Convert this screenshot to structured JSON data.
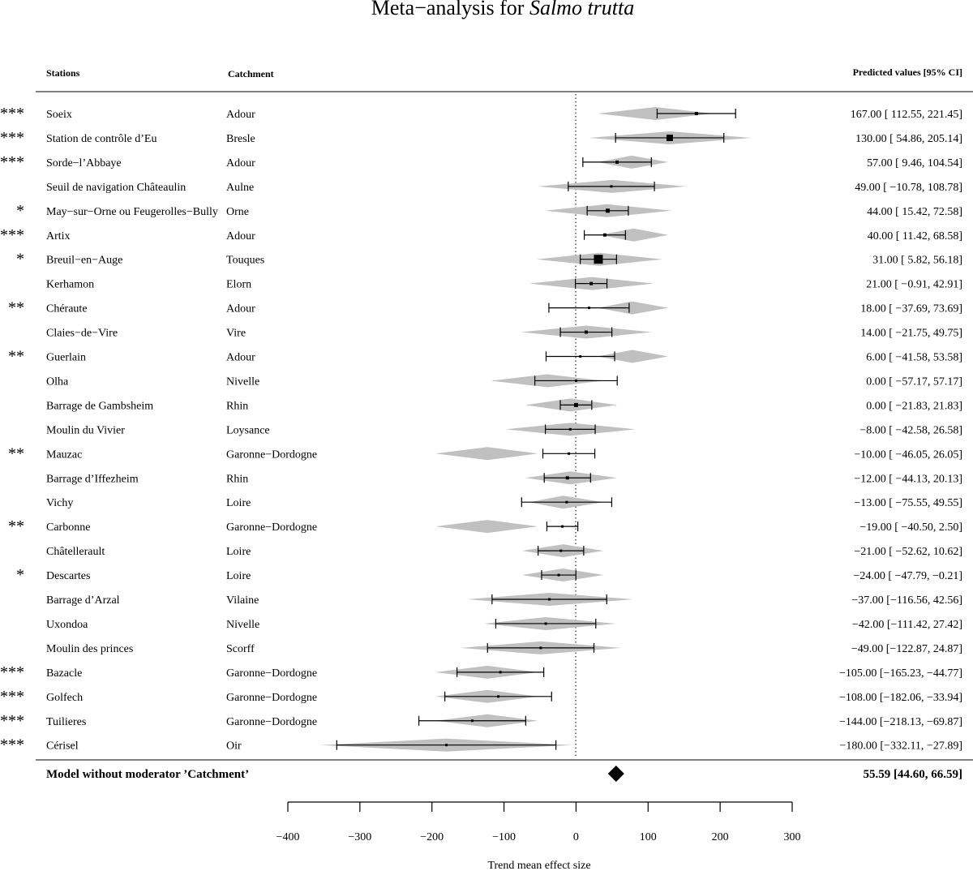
{
  "title_main": "Meta−analysis for ",
  "title_species": "Salmo trutta",
  "headers": {
    "stations": "Stations",
    "catchment": "Catchment",
    "predicted": "Predicted values [95% CI]"
  },
  "chart_data": {
    "type": "forest",
    "xlabel": "Trend mean effect size",
    "xlim": [
      -400,
      300
    ],
    "xticks": [
      -400,
      -300,
      -200,
      -100,
      0,
      100,
      200,
      300
    ],
    "xtick_labels": [
      "−400",
      "−300",
      "−200",
      "−100",
      "0",
      "100",
      "200",
      "300"
    ],
    "reference_line": 0,
    "rows": [
      {
        "sig": "***",
        "station": "Soeix",
        "catchment": "Adour",
        "est": 167.0,
        "lo": 112.55,
        "hi": 221.45,
        "label": "167.00 [ 112.55, 221.45]",
        "pred_center": 110,
        "pred_lo": 30,
        "pred_hi": 190,
        "box": 4
      },
      {
        "sig": "***",
        "station": "Station de contrôle d’Eu",
        "catchment": "Bresle",
        "est": 130.0,
        "lo": 54.86,
        "hi": 205.14,
        "label": "130.00 [ 54.86, 205.14]",
        "pred_center": 130,
        "pred_lo": 18,
        "pred_hi": 243,
        "box": 8
      },
      {
        "sig": "***",
        "station": "Sorde−l’Abbaye",
        "catchment": "Adour",
        "est": 57.0,
        "lo": 9.46,
        "hi": 104.54,
        "label": "57.00 [  9.46, 104.54]",
        "pred_center": 77,
        "pred_lo": 30,
        "pred_hi": 128,
        "box": 4
      },
      {
        "sig": "",
        "station": "Seuil de navigation Châteaulin",
        "catchment": "Aulne",
        "est": 49.0,
        "lo": -10.78,
        "hi": 108.78,
        "label": "49.00 [ −10.78, 108.78]",
        "pred_center": 50,
        "pred_lo": -53,
        "pred_hi": 153,
        "box": 3
      },
      {
        "sig": "*",
        "station": "May−sur−Orne ou Feugerolles−Bully",
        "catchment": "Orne",
        "est": 44.0,
        "lo": 15.42,
        "hi": 72.58,
        "label": "44.00 [  15.42,  72.58]",
        "pred_center": 43,
        "pred_lo": -43,
        "pred_hi": 133,
        "box": 5
      },
      {
        "sig": "***",
        "station": "Artix",
        "catchment": "Adour",
        "est": 40.0,
        "lo": 11.42,
        "hi": 68.58,
        "label": "40.00 [  11.42,  68.58]",
        "pred_center": 80,
        "pred_lo": 33,
        "pred_hi": 128,
        "box": 4
      },
      {
        "sig": "*",
        "station": "Breuil−en−Auge",
        "catchment": "Touques",
        "est": 31.0,
        "lo": 5.82,
        "hi": 56.18,
        "label": "31.00 [   5.82,  56.18]",
        "pred_center": 32,
        "pred_lo": -55,
        "pred_hi": 120,
        "box": 11
      },
      {
        "sig": "",
        "station": "Kerhamon",
        "catchment": "Elorn",
        "est": 21.0,
        "lo": -0.91,
        "hi": 42.91,
        "label": "21.00 [  −0.91,  42.91]",
        "pred_center": 22,
        "pred_lo": -65,
        "pred_hi": 108,
        "box": 4
      },
      {
        "sig": "**",
        "station": "Chéraute",
        "catchment": "Adour",
        "est": 18.0,
        "lo": -37.69,
        "hi": 73.69,
        "label": "18.00 [ −37.69,  73.69]",
        "pred_center": 78,
        "pred_lo": 30,
        "pred_hi": 128,
        "box": 3
      },
      {
        "sig": "",
        "station": "Claies−de−Vire",
        "catchment": "Vire",
        "est": 14.0,
        "lo": -21.75,
        "hi": 49.75,
        "label": "14.00 [ −21.75,  49.75]",
        "pred_center": 14,
        "pred_lo": -76,
        "pred_hi": 105,
        "box": 4
      },
      {
        "sig": "**",
        "station": "Guerlain",
        "catchment": "Adour",
        "est": 6.0,
        "lo": -41.58,
        "hi": 53.58,
        "label": "6.00 [ −41.58,  53.58]",
        "pred_center": 78,
        "pred_lo": 30,
        "pred_hi": 128,
        "box": 3
      },
      {
        "sig": "",
        "station": "Olha",
        "catchment": "Nivelle",
        "est": 0.0,
        "lo": -57.17,
        "hi": 57.17,
        "label": "0.00 [ −57.17,  57.17]",
        "pred_center": -40,
        "pred_lo": -118,
        "pred_hi": 38,
        "box": 3
      },
      {
        "sig": "",
        "station": "Barrage de Gambsheim",
        "catchment": "Rhin",
        "est": 0.0,
        "lo": -21.83,
        "hi": 21.83,
        "label": "0.00 [ −21.83,  21.83]",
        "pred_center": -8,
        "pred_lo": -70,
        "pred_hi": 57,
        "box": 5
      },
      {
        "sig": "",
        "station": "Moulin du Vivier",
        "catchment": "Loysance",
        "est": -8.0,
        "lo": -42.58,
        "hi": 26.58,
        "label": "−8.00 [ −42.58,  26.58]",
        "pred_center": -8,
        "pred_lo": -98,
        "pred_hi": 83,
        "box": 3
      },
      {
        "sig": "**",
        "station": "Mauzac",
        "catchment": "Garonne−Dordogne",
        "est": -10.0,
        "lo": -46.05,
        "hi": 26.05,
        "label": "−10.00 [ −46.05,  26.05]",
        "pred_center": -123,
        "pred_lo": -195,
        "pred_hi": -53,
        "box": 3
      },
      {
        "sig": "",
        "station": "Barrage d’Iffezheim",
        "catchment": "Rhin",
        "est": -12.0,
        "lo": -44.13,
        "hi": 20.13,
        "label": "−12.00 [ −44.13,  20.13]",
        "pred_center": -8,
        "pred_lo": -70,
        "pred_hi": 57,
        "box": 4
      },
      {
        "sig": "",
        "station": "Vichy",
        "catchment": "Loire",
        "est": -13.0,
        "lo": -75.55,
        "hi": 49.55,
        "label": "−13.00 [ −75.55,  49.55]",
        "pred_center": -18,
        "pred_lo": -65,
        "pred_hi": 38,
        "box": 3
      },
      {
        "sig": "**",
        "station": "Carbonne",
        "catchment": "Garonne−Dordogne",
        "est": -19.0,
        "lo": -40.5,
        "hi": 2.5,
        "label": "−19.00 [ −40.50,   2.50]",
        "pred_center": -123,
        "pred_lo": -195,
        "pred_hi": -53,
        "box": 3
      },
      {
        "sig": "",
        "station": "Châtellerault",
        "catchment": "Loire",
        "est": -21.0,
        "lo": -52.62,
        "hi": 10.62,
        "label": "−21.00 [ −52.62,  10.62]",
        "pred_center": -18,
        "pred_lo": -75,
        "pred_hi": 38,
        "box": 3
      },
      {
        "sig": "*",
        "station": "Descartes",
        "catchment": "Loire",
        "est": -24.0,
        "lo": -47.79,
        "hi": -0.21,
        "label": "−24.00 [ −47.79,  −0.21]",
        "pred_center": -18,
        "pred_lo": -75,
        "pred_hi": 38,
        "box": 3
      },
      {
        "sig": "",
        "station": "Barrage d’Arzal",
        "catchment": "Vilaine",
        "est": -37.0,
        "lo": -116.56,
        "hi": 42.56,
        "label": "−37.00 [−116.56,  42.56]",
        "pred_center": -37,
        "pred_lo": -151,
        "pred_hi": 79,
        "box": 3
      },
      {
        "sig": "",
        "station": "Uxondoa",
        "catchment": "Nivelle",
        "est": -42.0,
        "lo": -111.42,
        "hi": 27.42,
        "label": "−42.00 [−111.42,  27.42]",
        "pred_center": -42,
        "pred_lo": -128,
        "pred_hi": 55,
        "box": 3
      },
      {
        "sig": "",
        "station": "Moulin des princes",
        "catchment": "Scorff",
        "est": -49.0,
        "lo": -122.87,
        "hi": 24.87,
        "label": "−49.00 [−122.87,  24.87]",
        "pred_center": -49,
        "pred_lo": -160,
        "pred_hi": 63,
        "box": 3
      },
      {
        "sig": "***",
        "station": "Bazacle",
        "catchment": "Garonne−Dordogne",
        "est": -105.0,
        "lo": -165.23,
        "hi": -44.77,
        "label": "−105.00 [−165.23, −44.77]",
        "pred_center": -123,
        "pred_lo": -195,
        "pred_hi": -53,
        "box": 3
      },
      {
        "sig": "***",
        "station": "Golfech",
        "catchment": "Garonne−Dordogne",
        "est": -108.0,
        "lo": -182.06,
        "hi": -33.94,
        "label": "−108.00 [−182.06, −33.94]",
        "pred_center": -123,
        "pred_lo": -195,
        "pred_hi": -53,
        "box": 3
      },
      {
        "sig": "***",
        "station": "Tuilieres",
        "catchment": "Garonne−Dordogne",
        "est": -144.0,
        "lo": -218.13,
        "hi": -69.87,
        "label": "−144.00 [−218.13, −69.87]",
        "pred_center": -123,
        "pred_lo": -195,
        "pred_hi": -53,
        "box": 3
      },
      {
        "sig": "***",
        "station": "Cérisel",
        "catchment": "Oir",
        "est": -180.0,
        "lo": -332.11,
        "hi": -27.89,
        "label": "−180.00 [−332.11, −27.89]",
        "pred_center": -180,
        "pred_lo": -355,
        "pred_hi": -5,
        "box": 3
      }
    ],
    "model": {
      "label": "Model without moderator ’Catchment’",
      "est": 55.59,
      "lo": 44.6,
      "hi": 66.59,
      "text": "55.59 [44.60, 66.59]"
    },
    "colors": {
      "prediction_interval": "#c0c0c0",
      "ink": "#000000"
    }
  }
}
